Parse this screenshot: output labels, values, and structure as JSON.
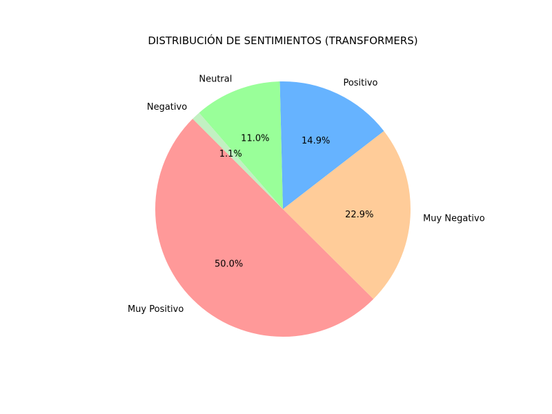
{
  "chart_data": {
    "type": "pie",
    "title": "DISTRIBUCIÓN DE SENTIMIENTOS (TRANSFORMERS)",
    "slices": [
      {
        "label": "Muy Positivo",
        "value": 50.0,
        "pct_label": "50.0%",
        "color": "#ff9999"
      },
      {
        "label": "Muy Negativo",
        "value": 22.9,
        "pct_label": "22.9%",
        "color": "#ffcc99"
      },
      {
        "label": "Positivo",
        "value": 14.9,
        "pct_label": "14.9%",
        "color": "#66b3ff"
      },
      {
        "label": "Neutral",
        "value": 11.0,
        "pct_label": "11.0%",
        "color": "#99ff99"
      },
      {
        "label": "Negativo",
        "value": 1.1,
        "pct_label": "1.1%",
        "color": "#c2f0c2"
      }
    ],
    "start_angle_deg": 135,
    "direction": "counterclockwise"
  }
}
